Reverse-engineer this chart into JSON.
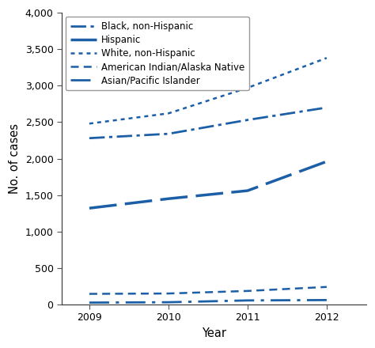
{
  "years": [
    2009,
    2010,
    2011,
    2012
  ],
  "series": [
    {
      "name": "Black, non-Hispanic",
      "values": [
        2280,
        2340,
        2530,
        2700
      ],
      "dash": [
        7,
        2,
        1.5,
        2
      ],
      "lw": 2.0
    },
    {
      "name": "Hispanic",
      "values": [
        1320,
        1450,
        1560,
        1960
      ],
      "dash": [
        10,
        3
      ],
      "lw": 2.5
    },
    {
      "name": "White, non-Hispanic",
      "values": [
        2480,
        2620,
        2970,
        3380
      ],
      "dash": [
        2,
        2
      ],
      "lw": 1.8
    },
    {
      "name": "American Indian/Alaska Native",
      "values": [
        145,
        150,
        185,
        240
      ],
      "dash": [
        4,
        2.5
      ],
      "lw": 1.8
    },
    {
      "name": "Asian/Pacific Islander",
      "values": [
        25,
        30,
        55,
        60
      ],
      "dash": [
        9,
        3,
        1.5,
        3
      ],
      "lw": 2.0
    }
  ],
  "color": "#1c5fa6",
  "ylabel": "No. of cases",
  "xlabel": "Year",
  "ylim": [
    0,
    4000
  ],
  "yticks": [
    0,
    500,
    1000,
    1500,
    2000,
    2500,
    3000,
    3500,
    4000
  ],
  "xlim": [
    2008.65,
    2012.5
  ],
  "xticks": [
    2009,
    2010,
    2011,
    2012
  ],
  "legend_fontsize": 8.5,
  "axis_label_fontsize": 10.5,
  "tick_fontsize": 9,
  "figsize": [
    4.74,
    4.4
  ],
  "dpi": 100
}
